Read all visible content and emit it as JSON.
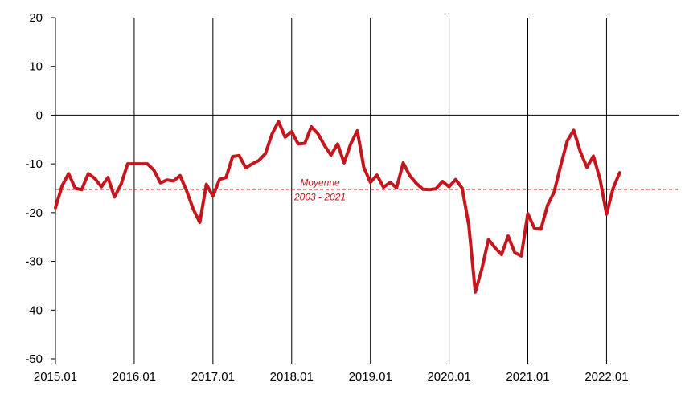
{
  "chart_data": {
    "type": "line",
    "title": "",
    "xlabel": "",
    "ylabel": "",
    "ylim": [
      -50,
      20
    ],
    "y_ticks": [
      20,
      10,
      0,
      -10,
      -20,
      -30,
      -40,
      -50
    ],
    "x_tick_labels": [
      "2015.01",
      "2016.01",
      "2017.01",
      "2018.01",
      "2019.01",
      "2020.01",
      "2021.01",
      "2022.01"
    ],
    "x_start": "2015.01",
    "grid": "vertical lines at each year; horizontal line at 0",
    "colors": {
      "series": "#c4161c",
      "mean_line": "#c4161c",
      "grid": "#000000"
    },
    "series": [
      {
        "values": [
          -19,
          -14.5,
          -12,
          -15,
          -15.3,
          -12,
          -13,
          -14.7,
          -12.8,
          -16.8,
          -14.2,
          -10,
          -10,
          -10,
          -10,
          -11.3,
          -13.9,
          -13.3,
          -13.5,
          -12.4,
          -15.6,
          -19.3,
          -22,
          -14.2,
          -16.6,
          -13.2,
          -12.8,
          -8.5,
          -8.3,
          -10.8,
          -10,
          -9.3,
          -7.9,
          -3.9,
          -1.3,
          -4.5,
          -3.4,
          -5.9,
          -5.8,
          -2.4,
          -3.8,
          -6.2,
          -8.2,
          -5.9,
          -9.8,
          -5.9,
          -3.2,
          -10.7,
          -13.8,
          -12.3,
          -14.8,
          -13.8,
          -14.9,
          -9.8,
          -12.4,
          -14,
          -15.2,
          -15.3,
          -15.1,
          -13.6,
          -14.7,
          -13.2,
          -15,
          -22.6,
          -36.3,
          -31.5,
          -25.5,
          -27.2,
          -28.6,
          -24.8,
          -28.2,
          -28.9,
          -20.2,
          -23.2,
          -23.4,
          -18.5,
          -15.8,
          -10.4,
          -5.3,
          -3.1,
          -7.5,
          -10.7,
          -8.4,
          -13.1,
          -20.3,
          -15,
          -11.8
        ]
      }
    ],
    "reference_line": {
      "value": -15.2,
      "label_line1": "Moyenne",
      "label_line2": "2003 - 2021"
    }
  }
}
